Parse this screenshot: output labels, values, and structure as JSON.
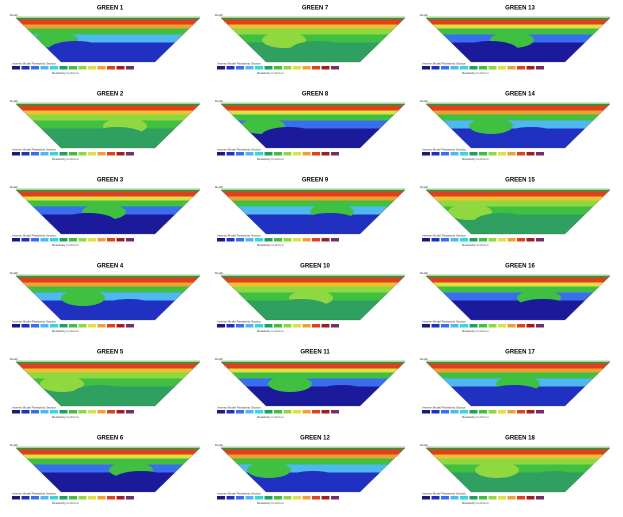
{
  "panels": [
    {
      "title": "GREEN 1"
    },
    {
      "title": "GREEN 7"
    },
    {
      "title": "GREEN 13"
    },
    {
      "title": "GREEN 2"
    },
    {
      "title": "GREEN 8"
    },
    {
      "title": "GREEN 14"
    },
    {
      "title": "GREEN 3"
    },
    {
      "title": "GREEN 9"
    },
    {
      "title": "GREEN 15"
    },
    {
      "title": "GREEN 4"
    },
    {
      "title": "GREEN 10"
    },
    {
      "title": "GREEN 16"
    },
    {
      "title": "GREEN 5"
    },
    {
      "title": "GREEN 11"
    },
    {
      "title": "GREEN 17"
    },
    {
      "title": "GREEN 6"
    },
    {
      "title": "GREEN 12"
    },
    {
      "title": "GREEN 18"
    }
  ],
  "depth_label": "Depth",
  "section_label": "Inverse Model Resistivity Section",
  "unit_label": "Resistivity in ohm.m"
}
